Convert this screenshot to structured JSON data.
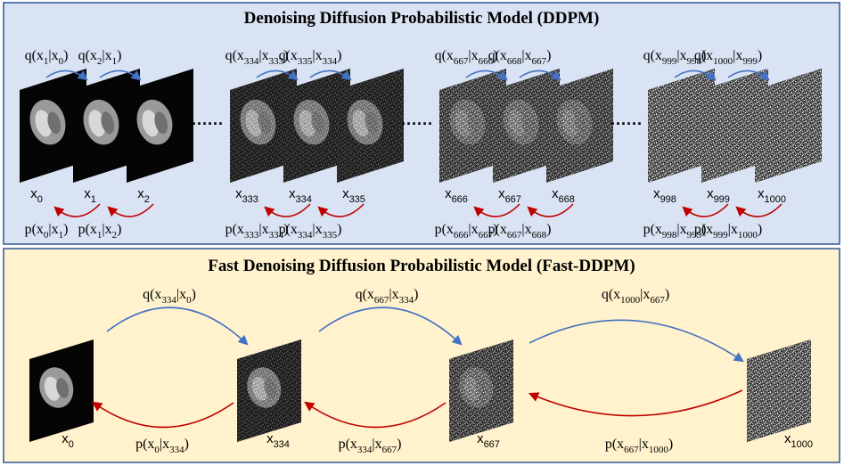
{
  "ddpm": {
    "title": "Denoising Diffusion Probabilistic Model (DDPM)",
    "groups": [
      {
        "states": [
          {
            "base": "x",
            "sub": "0",
            "noise": 0.0
          },
          {
            "base": "x",
            "sub": "1",
            "noise": 0.0
          },
          {
            "base": "x",
            "sub": "2",
            "noise": 0.0
          }
        ],
        "forward": [
          {
            "f": "q",
            "a": "1",
            "b": "0"
          },
          {
            "f": "q",
            "a": "2",
            "b": "1"
          }
        ],
        "reverse": [
          {
            "f": "p",
            "a": "0",
            "b": "1"
          },
          {
            "f": "p",
            "a": "1",
            "b": "2"
          }
        ]
      },
      {
        "states": [
          {
            "base": "x",
            "sub": "333",
            "noise": 0.33
          },
          {
            "base": "x",
            "sub": "334",
            "noise": 0.34
          },
          {
            "base": "x",
            "sub": "335",
            "noise": 0.35
          }
        ],
        "forward": [
          {
            "f": "q",
            "a": "334",
            "b": "333"
          },
          {
            "f": "q",
            "a": "335",
            "b": "334"
          }
        ],
        "reverse": [
          {
            "f": "p",
            "a": "333",
            "b": "334"
          },
          {
            "f": "p",
            "a": "334",
            "b": "335"
          }
        ]
      },
      {
        "states": [
          {
            "base": "x",
            "sub": "666",
            "noise": 0.66
          },
          {
            "base": "x",
            "sub": "667",
            "noise": 0.67
          },
          {
            "base": "x",
            "sub": "668",
            "noise": 0.68
          }
        ],
        "forward": [
          {
            "f": "q",
            "a": "667",
            "b": "666"
          },
          {
            "f": "q",
            "a": "668",
            "b": "667"
          }
        ],
        "reverse": [
          {
            "f": "p",
            "a": "666",
            "b": "667"
          },
          {
            "f": "p",
            "a": "667",
            "b": "668"
          }
        ]
      },
      {
        "states": [
          {
            "base": "x",
            "sub": "998",
            "noise": 1.0
          },
          {
            "base": "x",
            "sub": "999",
            "noise": 1.0
          },
          {
            "base": "x",
            "sub": "1000",
            "noise": 1.0
          }
        ],
        "forward": [
          {
            "f": "q",
            "a": "999",
            "b": "998"
          },
          {
            "f": "q",
            "a": "1000",
            "b": "999"
          }
        ],
        "reverse": [
          {
            "f": "p",
            "a": "998",
            "b": "999"
          },
          {
            "f": "p",
            "a": "999",
            "b": "1000"
          }
        ]
      }
    ],
    "ellipsis": "······"
  },
  "fast": {
    "title": "Fast Denoising Diffusion Probabilistic Model (Fast-DDPM)",
    "states": [
      {
        "base": "x",
        "sub": "0",
        "noise": 0.0
      },
      {
        "base": "x",
        "sub": "334",
        "noise": 0.34
      },
      {
        "base": "x",
        "sub": "667",
        "noise": 0.67
      },
      {
        "base": "x",
        "sub": "1000",
        "noise": 1.0
      }
    ],
    "forward": [
      {
        "f": "q",
        "a": "334",
        "b": "0"
      },
      {
        "f": "q",
        "a": "667",
        "b": "334"
      },
      {
        "f": "q",
        "a": "1000",
        "b": "667"
      }
    ],
    "reverse": [
      {
        "f": "p",
        "a": "0",
        "b": "334"
      },
      {
        "f": "p",
        "a": "334",
        "b": "667"
      },
      {
        "f": "p",
        "a": "667",
        "b": "1000"
      }
    ]
  },
  "colors": {
    "top_panel_bg": "#dae3f3",
    "bottom_panel_bg": "#fff2cc",
    "panel_border": "#2f5597",
    "forward_arrow": "#4472c4",
    "reverse_arrow": "#c00000"
  }
}
